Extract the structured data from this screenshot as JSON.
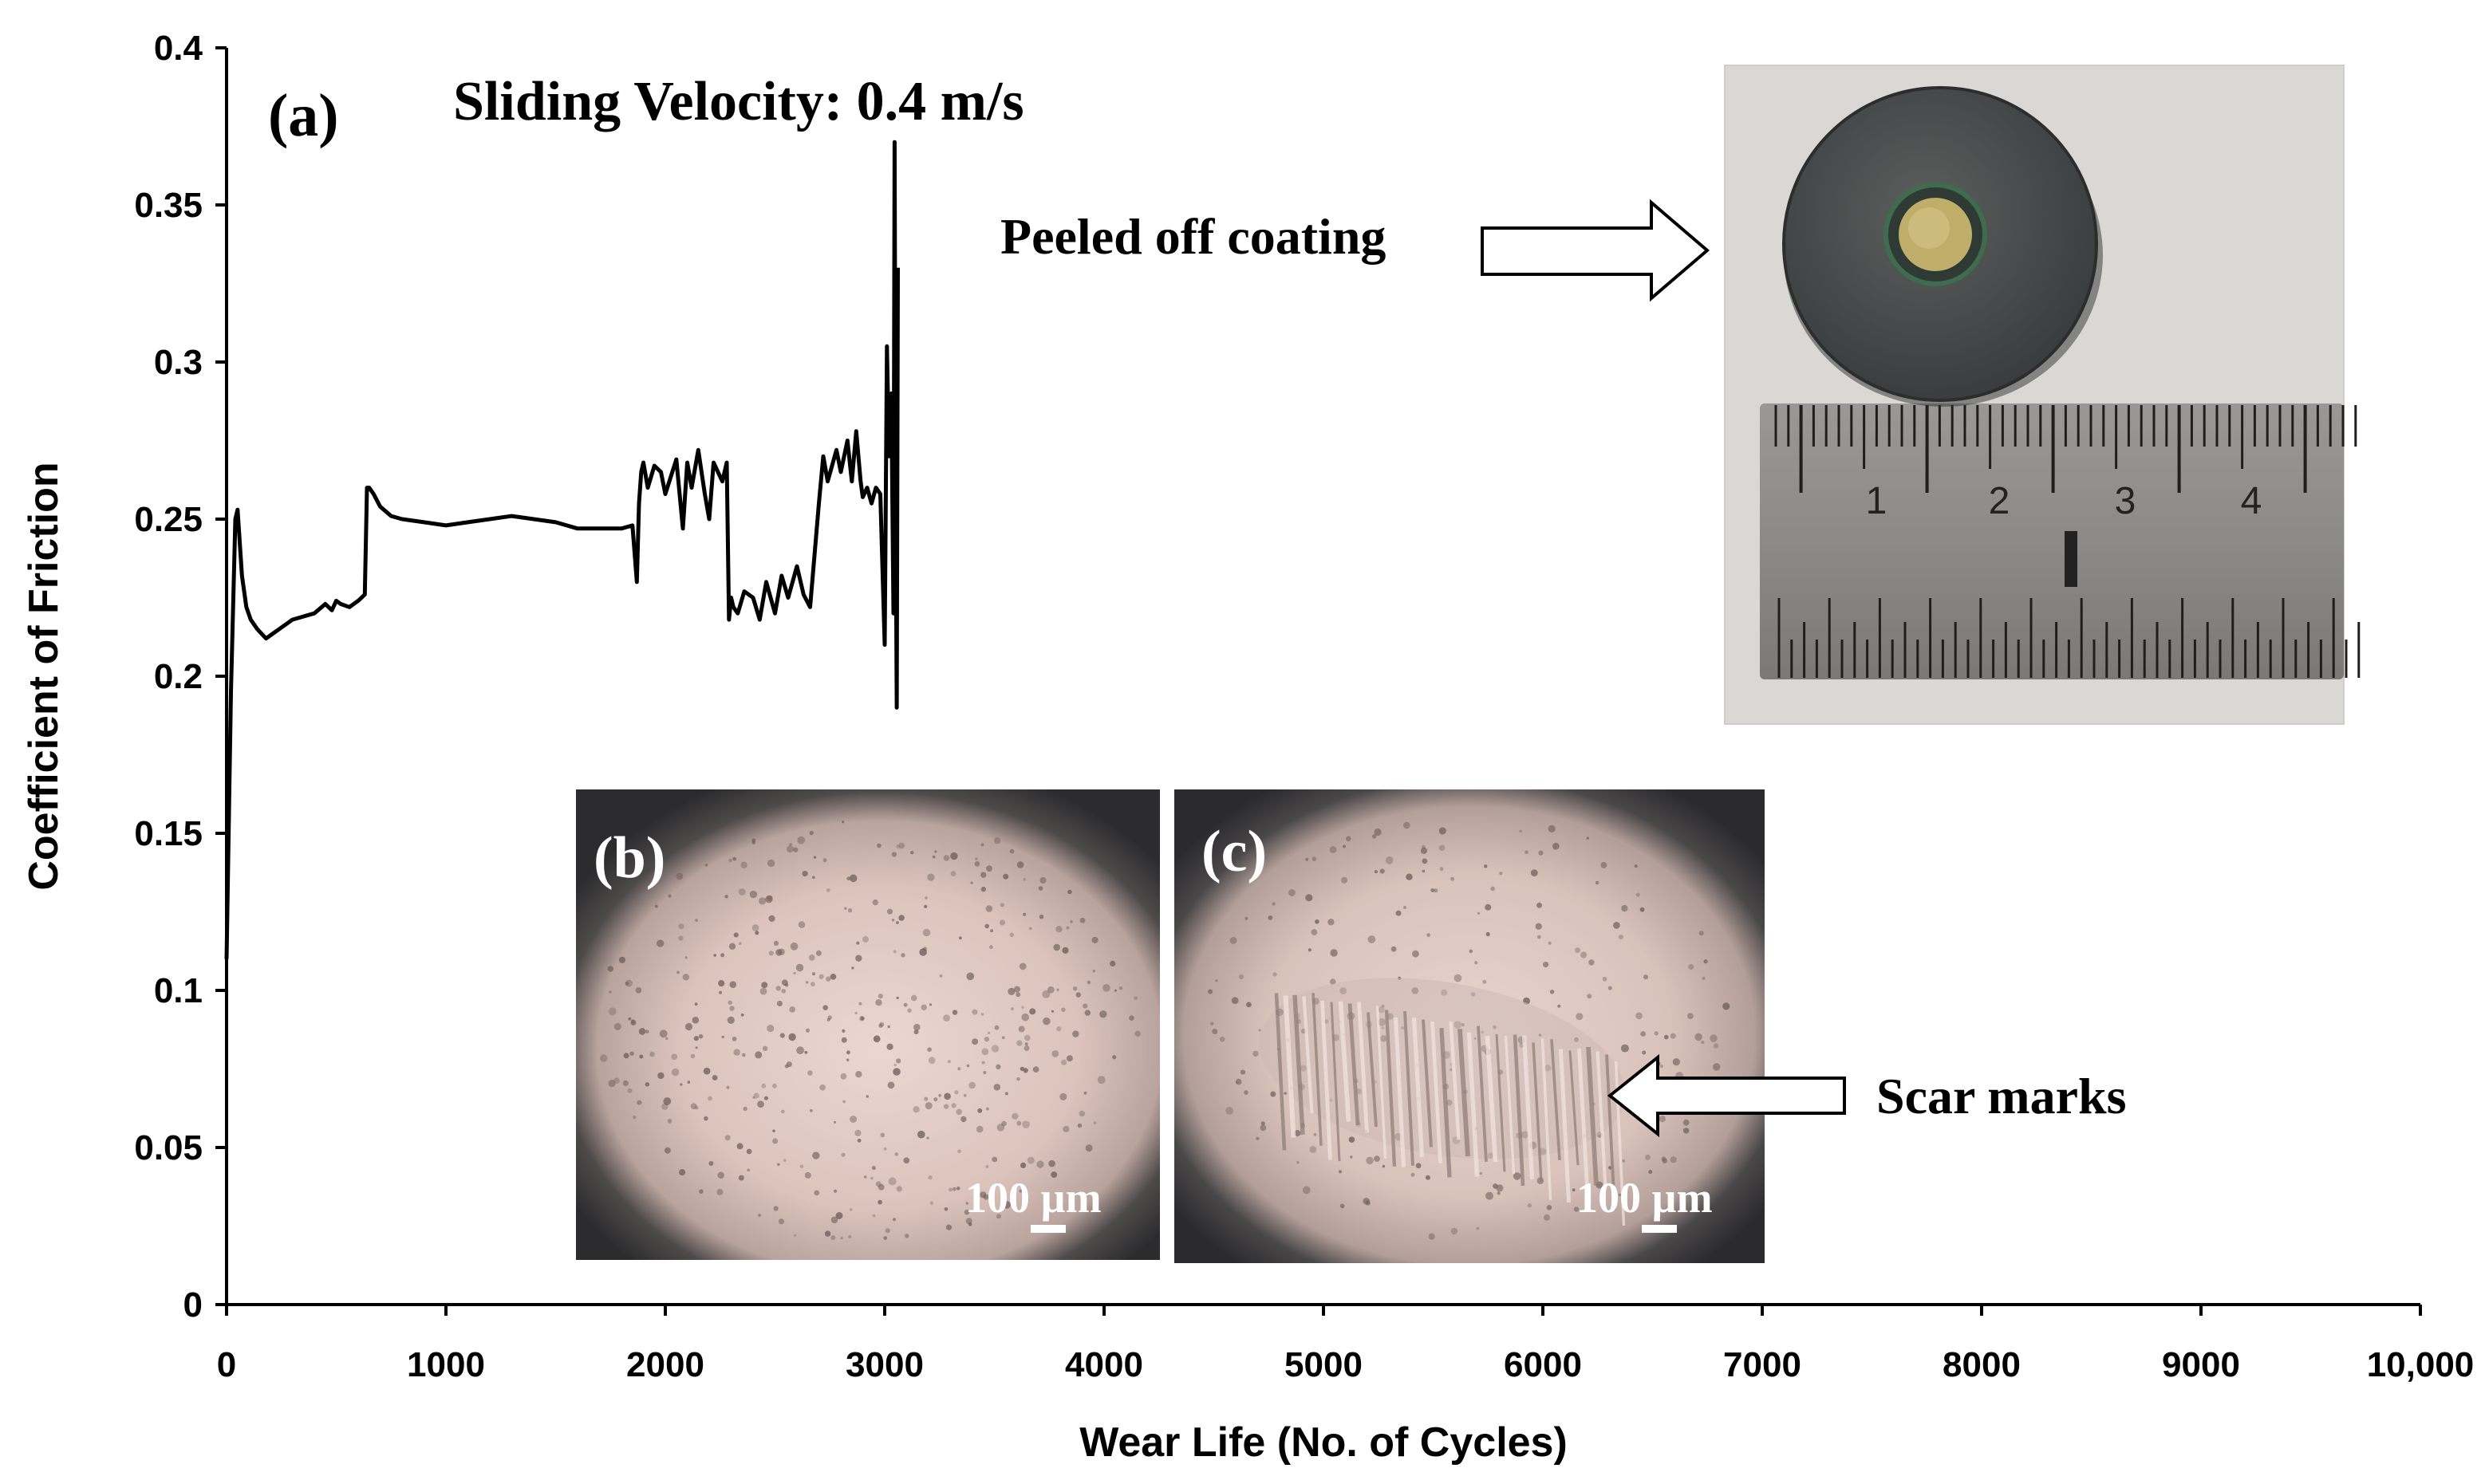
{
  "chart_data": {
    "type": "line",
    "panel_label": "(a)",
    "title": "Sliding Velocity: 0.4 m/s",
    "xlabel": "Wear Life (No. of Cycles)",
    "ylabel": "Coefficient of Friction",
    "xlim": [
      0,
      10000
    ],
    "ylim": [
      0,
      0.4
    ],
    "x_ticks": [
      0,
      1000,
      2000,
      3000,
      4000,
      5000,
      6000,
      7000,
      8000,
      9000,
      10000
    ],
    "x_tick_labels": [
      "0",
      "1000",
      "2000",
      "3000",
      "4000",
      "5000",
      "6000",
      "7000",
      "8000",
      "9000",
      "10,000"
    ],
    "y_ticks": [
      0,
      0.05,
      0.1,
      0.15,
      0.2,
      0.25,
      0.3,
      0.35,
      0.4
    ],
    "y_tick_labels": [
      "0",
      "0.05",
      "0.1",
      "0.15",
      "0.2",
      "0.25",
      "0.3",
      "0.35",
      "0.4"
    ],
    "grid": false,
    "series": [
      {
        "name": "Coefficient of Friction",
        "color": "#000000",
        "x": [
          0,
          20,
          40,
          50,
          70,
          90,
          110,
          140,
          180,
          220,
          260,
          300,
          350,
          400,
          450,
          480,
          500,
          520,
          560,
          600,
          630,
          640,
          650,
          670,
          700,
          750,
          800,
          900,
          1000,
          1100,
          1200,
          1300,
          1400,
          1500,
          1600,
          1700,
          1800,
          1850,
          1870,
          1880,
          1890,
          1900,
          1920,
          1950,
          1980,
          2000,
          2050,
          2080,
          2100,
          2120,
          2150,
          2180,
          2200,
          2220,
          2240,
          2260,
          2280,
          2290,
          2300,
          2310,
          2330,
          2360,
          2400,
          2430,
          2460,
          2500,
          2530,
          2560,
          2600,
          2630,
          2660,
          2700,
          2720,
          2740,
          2780,
          2800,
          2830,
          2850,
          2870,
          2890,
          2900,
          2920,
          2940,
          2960,
          2980,
          3000,
          3010,
          3020,
          3030,
          3040,
          3045,
          3050,
          3055,
          3060
        ],
        "values": [
          0.11,
          0.195,
          0.25,
          0.253,
          0.232,
          0.222,
          0.218,
          0.215,
          0.212,
          0.214,
          0.216,
          0.218,
          0.219,
          0.22,
          0.223,
          0.221,
          0.224,
          0.223,
          0.222,
          0.224,
          0.226,
          0.26,
          0.26,
          0.258,
          0.254,
          0.251,
          0.25,
          0.249,
          0.248,
          0.249,
          0.25,
          0.251,
          0.25,
          0.249,
          0.247,
          0.247,
          0.247,
          0.248,
          0.23,
          0.255,
          0.265,
          0.268,
          0.26,
          0.267,
          0.265,
          0.258,
          0.269,
          0.247,
          0.268,
          0.26,
          0.272,
          0.258,
          0.25,
          0.268,
          0.265,
          0.262,
          0.268,
          0.218,
          0.225,
          0.222,
          0.22,
          0.227,
          0.225,
          0.218,
          0.23,
          0.22,
          0.232,
          0.225,
          0.235,
          0.226,
          0.222,
          0.255,
          0.27,
          0.262,
          0.272,
          0.265,
          0.275,
          0.262,
          0.278,
          0.262,
          0.257,
          0.26,
          0.255,
          0.26,
          0.258,
          0.21,
          0.305,
          0.27,
          0.29,
          0.22,
          0.37,
          0.25,
          0.19,
          0.33
        ]
      }
    ],
    "annotations": [
      {
        "text": "Peeled off coating",
        "arrow": "right"
      },
      {
        "text": "Scar marks",
        "arrow": "left"
      }
    ]
  },
  "insets": {
    "photo": {
      "description_icon": "coin-specimen-photo",
      "ruler_numbers": [
        "1",
        "2",
        "3",
        "4"
      ],
      "colors": {
        "background": "#d8d6d3",
        "disc": "#4d504f",
        "coating": "#bfae6a",
        "ruler": "#8a8987"
      }
    },
    "micrograph_b": {
      "label": "(b)",
      "scale_bar": "100 µm"
    },
    "micrograph_c": {
      "label": "(c)",
      "scale_bar": "100 µm"
    }
  }
}
